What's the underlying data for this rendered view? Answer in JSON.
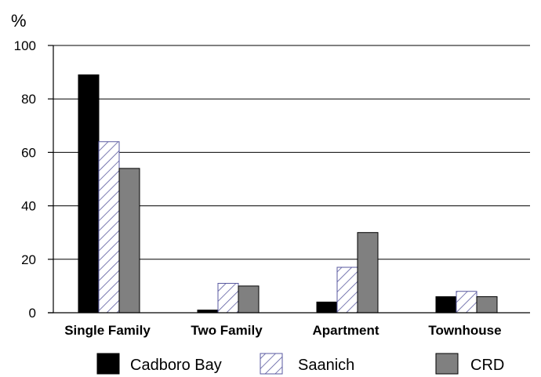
{
  "chart_data": {
    "type": "bar",
    "title": "",
    "ylabel": "%",
    "xlabel": "",
    "ylim": [
      0,
      100
    ],
    "yticks": [
      0,
      20,
      40,
      60,
      80,
      100
    ],
    "grid": true,
    "legend_position": "bottom",
    "categories": [
      "Single Family",
      "Two Family",
      "Apartment",
      "Townhouse"
    ],
    "series": [
      {
        "name": "Cadboro Bay",
        "values": [
          89,
          1,
          4,
          6
        ],
        "color": "#000000",
        "pattern": "solid"
      },
      {
        "name": "Saanich",
        "values": [
          64,
          11,
          17,
          8
        ],
        "color": "#5a5aa0",
        "pattern": "diagonal-hatch"
      },
      {
        "name": "CRD",
        "values": [
          54,
          10,
          30,
          6
        ],
        "color": "#808080",
        "pattern": "solid"
      }
    ]
  }
}
